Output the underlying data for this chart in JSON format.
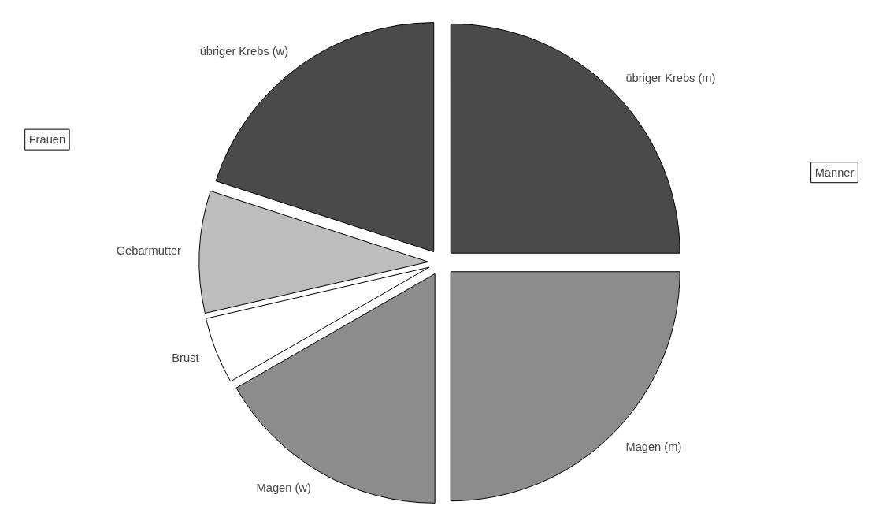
{
  "chart_data": {
    "type": "pie",
    "categories": [
      "übriger Krebs (m)",
      "Magen (m)",
      "Magen (w)",
      "Brust",
      "Gebärmutter",
      "übriger Krebs (w)"
    ],
    "values": [
      25,
      25,
      16.7,
      4.7,
      8.6,
      20
    ],
    "colors": [
      "#4a4a4a",
      "#8c8c8c",
      "#8c8c8c",
      "#ffffff",
      "#bdbdbd",
      "#4a4a4a"
    ],
    "annotations": [
      "Frauen",
      "Männer"
    ]
  }
}
